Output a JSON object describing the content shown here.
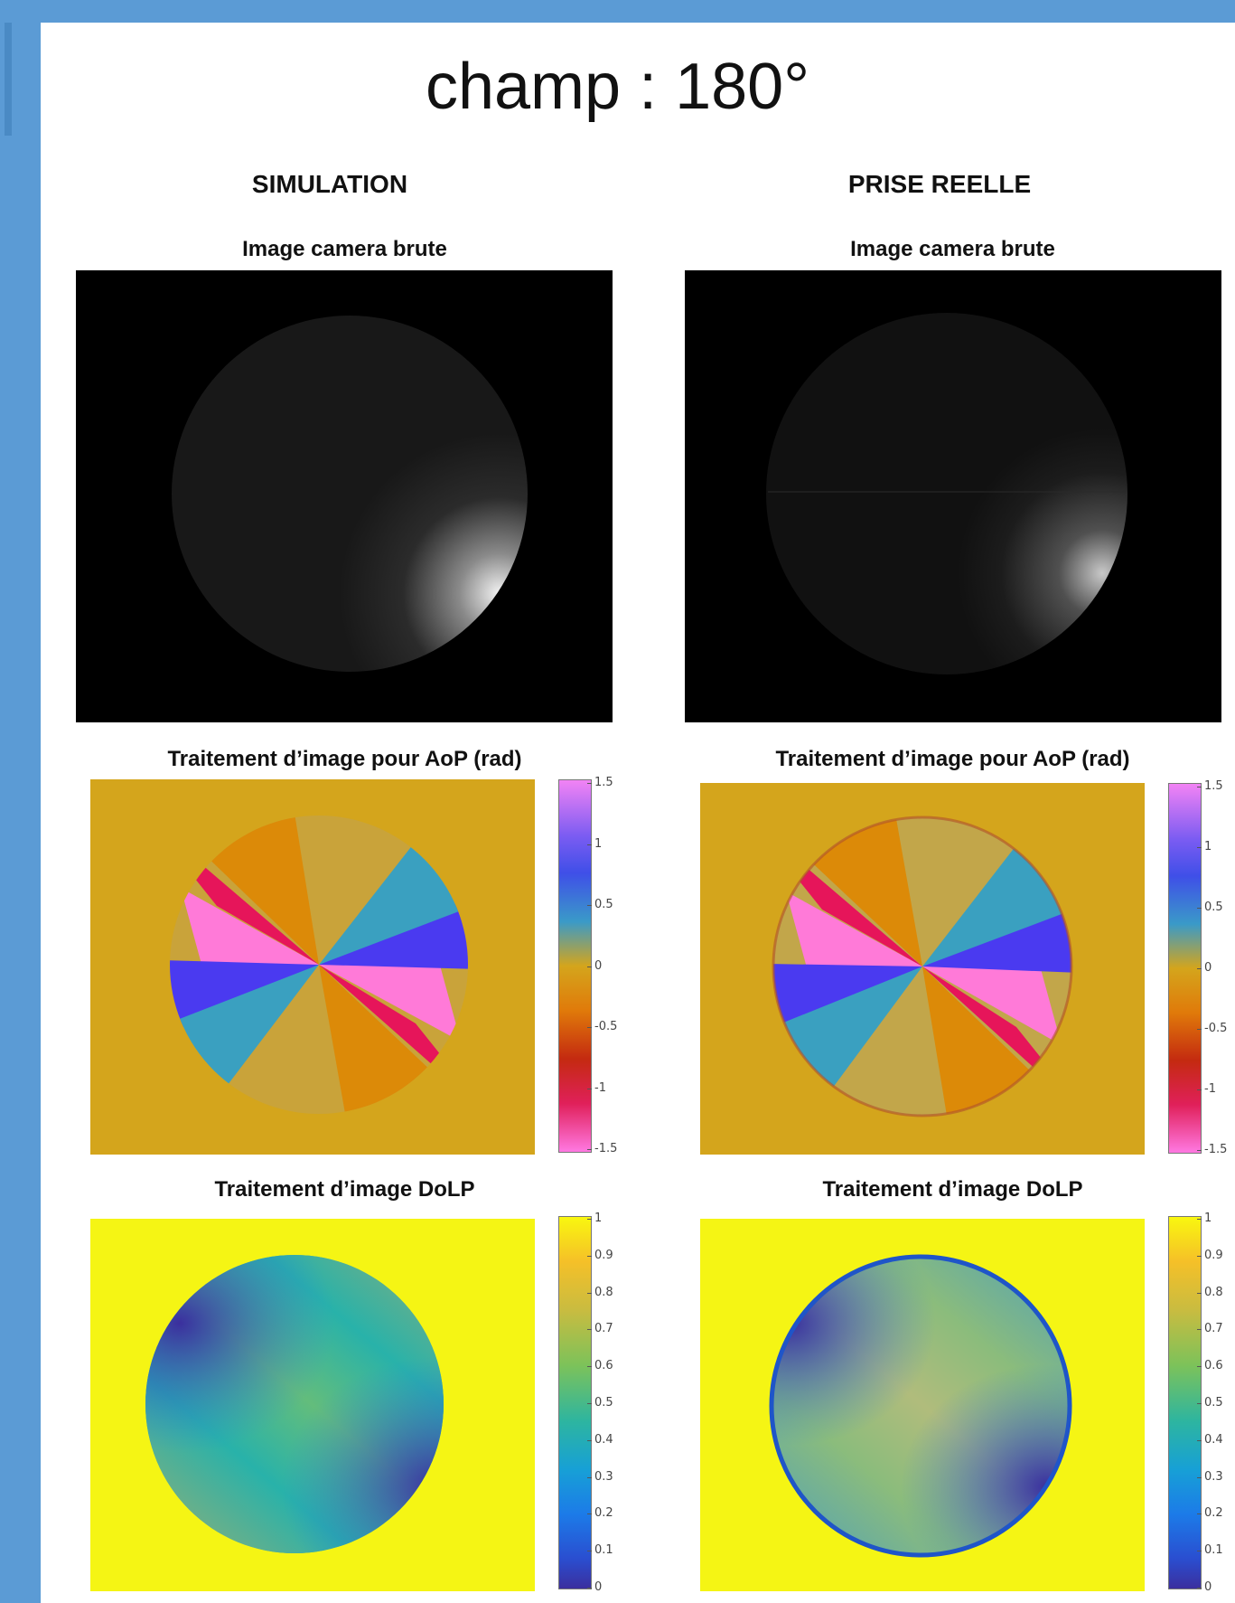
{
  "slide": {
    "title": "champ : 180°",
    "columns": [
      "SIMULATION",
      "PRISE REELLE"
    ]
  },
  "panels": {
    "raw_title": "Image camera brute",
    "aop_title": "Traitement d’image pour AoP (rad)",
    "dolp_title": "Traitement d’image DoLP"
  },
  "colorbars": {
    "aop": {
      "min": -1.5,
      "max": 1.5,
      "ticks": [
        "1.5",
        "1",
        "0.5",
        "0",
        "-0.5",
        "-1",
        "-1.5"
      ]
    },
    "dolp": {
      "min": 0,
      "max": 1,
      "ticks": [
        "1",
        "0.9",
        "0.8",
        "0.7",
        "0.6",
        "0.5",
        "0.4",
        "0.3",
        "0.2",
        "0.1",
        "0"
      ]
    }
  },
  "colors": {
    "accent_bar": "#5b9bd5",
    "aop_background": "#d4a51c",
    "dolp_background": "#f5f514"
  }
}
